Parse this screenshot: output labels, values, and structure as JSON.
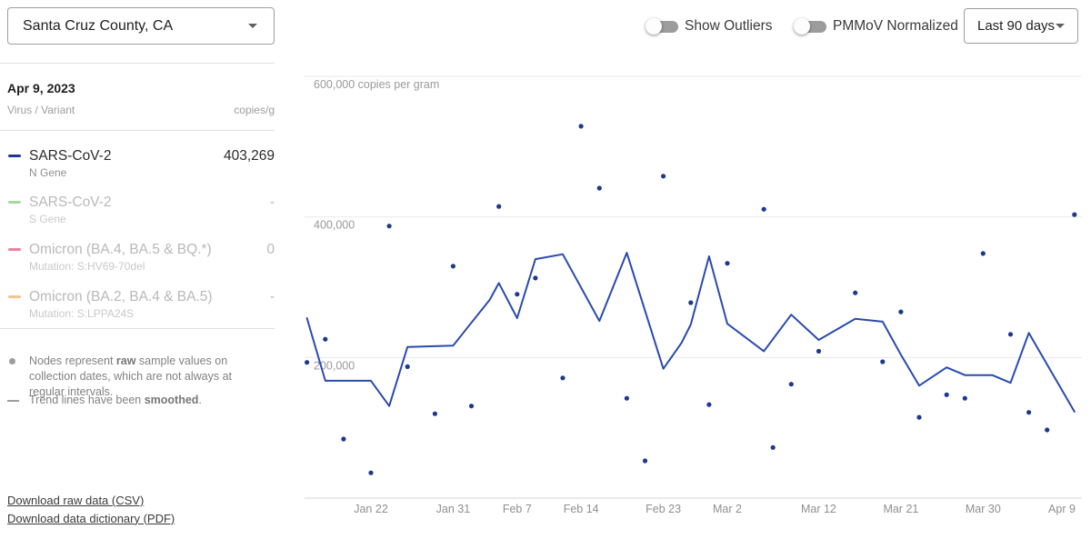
{
  "header": {
    "location": {
      "value": "Santa Cruz County, CA"
    },
    "toggles": [
      {
        "label": "Show Outliers",
        "state": "off"
      },
      {
        "label": "PMMoV Normalized",
        "state": "off"
      }
    ],
    "range": {
      "value": "Last 90 days"
    }
  },
  "sidebar": {
    "selected_date": "Apr 9, 2023",
    "columns": {
      "left": "Virus / Variant",
      "right": "copies/g"
    },
    "series_list": [
      {
        "name": "SARS-CoV-2",
        "subtitle": "N Gene",
        "value": "403,269",
        "color": "#1c398f",
        "active": true
      },
      {
        "name": "SARS-CoV-2",
        "subtitle": "S Gene",
        "value": "-",
        "color": "#a9d7a3",
        "active": false
      },
      {
        "name": "Omicron (BA.4, BA.5 & BQ.*)",
        "subtitle": "Mutation: S:HV69-70del",
        "value": "0",
        "color": "#ec82a0",
        "active": false
      },
      {
        "name": "Omicron (BA.2, BA.4 & BA.5)",
        "subtitle": "Mutation: S:LPPA24S",
        "value": "-",
        "color": "#f7c38e",
        "active": false
      }
    ],
    "notes": [
      {
        "pre": "Nodes represent ",
        "bold": "raw",
        "post": " sample values on collection dates, which are not always at regular intervals."
      },
      {
        "pre": "Trend lines have been ",
        "bold": "smoothed",
        "post": "."
      }
    ],
    "links": [
      "Download raw data (CSV)",
      "Download data dictionary (PDF)"
    ]
  },
  "chart_data": {
    "type": "scatter",
    "title": "",
    "ylabel": "copies per gram",
    "y_domain": [
      0,
      620000
    ],
    "grid": "horizontal-only",
    "legend_position": "none",
    "point_color": "#1c398f",
    "line_color": "#2a4aae",
    "y_gridlines": [
      {
        "value": 600000,
        "label": "600,000 copies per gram"
      },
      {
        "value": 400000,
        "label": "400,000"
      },
      {
        "value": 200000,
        "label": "200,000"
      }
    ],
    "x_ticks": [
      {
        "date": "2023-01-22",
        "label": "Jan 22"
      },
      {
        "date": "2023-01-31",
        "label": "Jan 31"
      },
      {
        "date": "2023-02-07",
        "label": "Feb 7"
      },
      {
        "date": "2023-02-14",
        "label": "Feb 14"
      },
      {
        "date": "2023-02-23",
        "label": "Feb 23"
      },
      {
        "date": "2023-03-02",
        "label": "Mar 2"
      },
      {
        "date": "2023-03-12",
        "label": "Mar 12"
      },
      {
        "date": "2023-03-21",
        "label": "Mar 21"
      },
      {
        "date": "2023-03-30",
        "label": "Mar 30"
      },
      {
        "date": "2023-04-09",
        "label": "Apr 9"
      }
    ],
    "series": [
      {
        "name": "SARS-CoV-2 N Gene raw samples",
        "style": "points",
        "points": [
          {
            "date": "2023-01-15",
            "value": 193000
          },
          {
            "date": "2023-01-17",
            "value": 226000
          },
          {
            "date": "2023-01-19",
            "value": 84000
          },
          {
            "date": "2023-01-22",
            "value": 36000
          },
          {
            "date": "2023-01-24",
            "value": 387000
          },
          {
            "date": "2023-01-26",
            "value": 187000
          },
          {
            "date": "2023-01-29",
            "value": 120000
          },
          {
            "date": "2023-01-31",
            "value": 330000
          },
          {
            "date": "2023-02-02",
            "value": 131000
          },
          {
            "date": "2023-02-05",
            "value": 415000
          },
          {
            "date": "2023-02-07",
            "value": 290000
          },
          {
            "date": "2023-02-09",
            "value": 313000
          },
          {
            "date": "2023-02-12",
            "value": 171000
          },
          {
            "date": "2023-02-14",
            "value": 529000
          },
          {
            "date": "2023-02-16",
            "value": 441000
          },
          {
            "date": "2023-02-19",
            "value": 142000
          },
          {
            "date": "2023-02-21",
            "value": 53000
          },
          {
            "date": "2023-02-23",
            "value": 458000
          },
          {
            "date": "2023-02-26",
            "value": 278000
          },
          {
            "date": "2023-02-28",
            "value": 133000
          },
          {
            "date": "2023-03-02",
            "value": 334000
          },
          {
            "date": "2023-03-06",
            "value": 411000
          },
          {
            "date": "2023-03-07",
            "value": 72000
          },
          {
            "date": "2023-03-09",
            "value": 162000
          },
          {
            "date": "2023-03-12",
            "value": 209000
          },
          {
            "date": "2023-03-16",
            "value": 292000
          },
          {
            "date": "2023-03-19",
            "value": 194000
          },
          {
            "date": "2023-03-21",
            "value": 265000
          },
          {
            "date": "2023-03-23",
            "value": 115000
          },
          {
            "date": "2023-03-26",
            "value": 147000
          },
          {
            "date": "2023-03-28",
            "value": 142000
          },
          {
            "date": "2023-03-30",
            "value": 348000
          },
          {
            "date": "2023-04-02",
            "value": 233000
          },
          {
            "date": "2023-04-04",
            "value": 122000
          },
          {
            "date": "2023-04-06",
            "value": 97000
          },
          {
            "date": "2023-04-09",
            "value": 403269
          }
        ]
      },
      {
        "name": "SARS-CoV-2 N Gene smoothed trend",
        "style": "line",
        "points": [
          {
            "date": "2023-01-15",
            "value": 256000
          },
          {
            "date": "2023-01-17",
            "value": 167000
          },
          {
            "date": "2023-01-22",
            "value": 167000
          },
          {
            "date": "2023-01-24",
            "value": 131000
          },
          {
            "date": "2023-01-26",
            "value": 215000
          },
          {
            "date": "2023-01-31",
            "value": 217000
          },
          {
            "date": "2023-02-04",
            "value": 282000
          },
          {
            "date": "2023-02-05",
            "value": 306000
          },
          {
            "date": "2023-02-07",
            "value": 256000
          },
          {
            "date": "2023-02-09",
            "value": 340000
          },
          {
            "date": "2023-02-12",
            "value": 347000
          },
          {
            "date": "2023-02-16",
            "value": 252000
          },
          {
            "date": "2023-02-19",
            "value": 349000
          },
          {
            "date": "2023-02-23",
            "value": 184000
          },
          {
            "date": "2023-02-25",
            "value": 221000
          },
          {
            "date": "2023-02-26",
            "value": 247000
          },
          {
            "date": "2023-02-28",
            "value": 344000
          },
          {
            "date": "2023-03-02",
            "value": 248000
          },
          {
            "date": "2023-03-06",
            "value": 209000
          },
          {
            "date": "2023-03-09",
            "value": 261000
          },
          {
            "date": "2023-03-12",
            "value": 225000
          },
          {
            "date": "2023-03-16",
            "value": 255000
          },
          {
            "date": "2023-03-19",
            "value": 251000
          },
          {
            "date": "2023-03-21",
            "value": 204000
          },
          {
            "date": "2023-03-23",
            "value": 160000
          },
          {
            "date": "2023-03-26",
            "value": 186000
          },
          {
            "date": "2023-03-28",
            "value": 175000
          },
          {
            "date": "2023-03-31",
            "value": 175000
          },
          {
            "date": "2023-04-02",
            "value": 164000
          },
          {
            "date": "2023-04-04",
            "value": 235000
          },
          {
            "date": "2023-04-09",
            "value": 123000
          }
        ]
      }
    ]
  }
}
